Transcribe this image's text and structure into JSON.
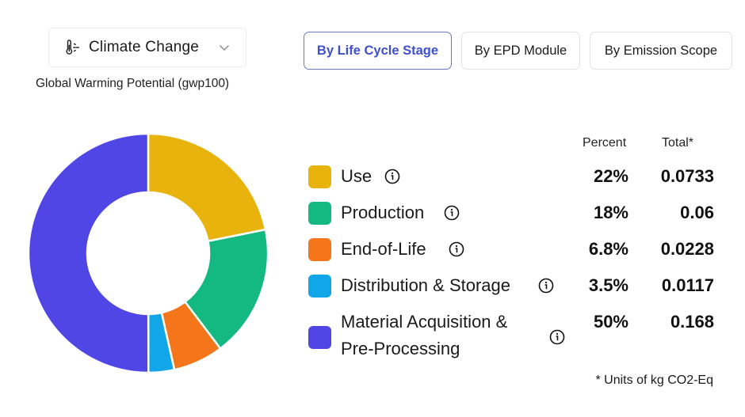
{
  "impact_selector": {
    "icon": "thermometer-sun-icon",
    "selected": "Climate Change"
  },
  "subtitle": "Global Warming Potential (gwp100)",
  "tabs": [
    {
      "label": "By Life Cycle Stage",
      "active": true
    },
    {
      "label": "By EPD Module",
      "active": false
    },
    {
      "label": "By Emission Scope",
      "active": false
    }
  ],
  "table": {
    "percent_header": "Percent",
    "total_header": "Total*",
    "rows": [
      {
        "label": "Use",
        "percent": "22%",
        "total": "0.0733",
        "color": "#E8B30D"
      },
      {
        "label": "Production",
        "percent": "18%",
        "total": "0.06",
        "color": "#13B981"
      },
      {
        "label": "End-of-Life",
        "percent": "6.8%",
        "total": "0.0228",
        "color": "#F5761A"
      },
      {
        "label": "Distribution & Storage",
        "percent": "3.5%",
        "total": "0.0117",
        "color": "#10A6E8"
      },
      {
        "label_line1": "Material Acquisition &",
        "label_line2": "Pre-Processing",
        "label": "Material Acquisition & Pre-Processing",
        "percent": "50%",
        "total": "0.168",
        "color": "#4F46E5"
      }
    ]
  },
  "footnote": "* Units of kg CO2-Eq",
  "chart_data": {
    "type": "pie",
    "variant": "donut",
    "title": "Global Warming Potential (gwp100)",
    "categories": [
      "Use",
      "Production",
      "End-of-Life",
      "Distribution & Storage",
      "Material Acquisition & Pre-Processing"
    ],
    "values": [
      0.0733,
      0.06,
      0.0228,
      0.0117,
      0.168
    ],
    "percents": [
      22,
      18,
      6.8,
      3.5,
      50
    ],
    "colors": [
      "#E8B30D",
      "#13B981",
      "#F5761A",
      "#10A6E8",
      "#4F46E5"
    ],
    "units": "kg CO2-Eq",
    "start_angle": "12 o'clock, clockwise",
    "legend_position": "right"
  }
}
